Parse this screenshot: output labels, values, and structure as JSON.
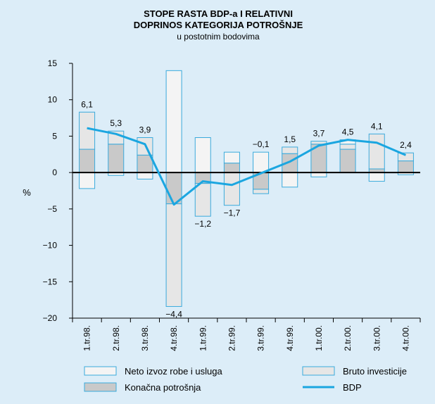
{
  "chart_data": {
    "type": "bar",
    "title": [
      "STOPE RASTA BDP-a I RELATIVNI",
      "DOPRINOS KATEGORIJA POTROŠNJE"
    ],
    "subtitle": "u postotnim bodovima",
    "y_label": "%",
    "categories": [
      "1.tr.98.",
      "2.tr.98.",
      "3.tr.98.",
      "4.tr.98.",
      "1.tr.99.",
      "2.tr.99.",
      "3.tr.99.",
      "4.tr.99.",
      "1.tr.00.",
      "2.tr.00.",
      "3.tr.00.",
      "4.tr.00."
    ],
    "series": [
      {
        "name": "Konačna potrošnja",
        "color": "#c9c9c9",
        "values": [
          3.2,
          3.9,
          2.4,
          -4.3,
          -1.5,
          1.3,
          -2.3,
          2.6,
          3.9,
          3.2,
          0.5,
          1.6
        ]
      },
      {
        "name": "Bruto investicije",
        "color": "#e6e6e6",
        "values": [
          5.1,
          1.8,
          2.4,
          -14.1,
          -4.5,
          -4.5,
          -0.6,
          0.9,
          0.4,
          0.7,
          4.8,
          1.1
        ]
      },
      {
        "name": "Neto izvoz robe i usluga",
        "color": "#f4f4f4",
        "values": [
          -2.2,
          -0.4,
          -0.9,
          14.0,
          4.8,
          1.5,
          2.8,
          -2.0,
          -0.6,
          0.6,
          -1.2,
          -0.3
        ]
      },
      {
        "name": "BDP",
        "type": "line",
        "color": "#1ba6e0",
        "values": [
          6.1,
          5.3,
          3.9,
          -4.4,
          -1.2,
          -1.7,
          -0.1,
          1.5,
          3.7,
          4.5,
          4.1,
          2.4
        ],
        "value_labels": [
          "6,1",
          "5,3",
          "3,9",
          "−4,4",
          "−1,2",
          "−1,7",
          "−0,1",
          "1,5",
          "3,7",
          "4,5",
          "4,1",
          "2,4"
        ]
      }
    ],
    "ylim": [
      -20,
      15
    ],
    "yticks": [
      {
        "value": -20,
        "label": "−20"
      },
      {
        "value": -15,
        "label": "−15"
      },
      {
        "value": -10,
        "label": "−10"
      },
      {
        "value": -5,
        "label": "−5"
      },
      0,
      5,
      10,
      15
    ],
    "bar_edge_color": "#3aaadc"
  }
}
